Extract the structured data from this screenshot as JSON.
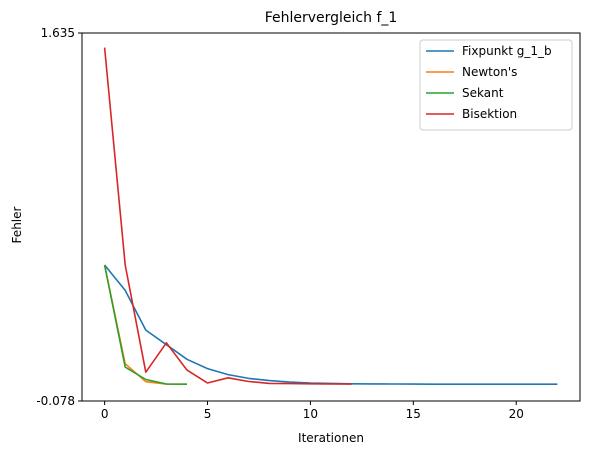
{
  "chart_data": {
    "type": "line",
    "title": "Fehlervergleich f_1",
    "xlabel": "Iterationen",
    "ylabel": "Fehler",
    "xlim": [
      -1.1,
      23.1
    ],
    "ylim": [
      -0.078,
      1.635
    ],
    "x_ticks": [
      0,
      5,
      10,
      15,
      20
    ],
    "x_tick_labels": [
      "0",
      "5",
      "10",
      "15",
      "20"
    ],
    "y_ticks": [
      1.635,
      -0.078
    ],
    "y_tick_labels": [
      "1.635",
      "-0.078"
    ],
    "grid": false,
    "legend_position": "top-right",
    "series": [
      {
        "name": "Fixpunkt g_1_b",
        "color": "#1f77b4",
        "x": [
          0,
          1,
          2,
          3,
          4,
          5,
          6,
          7,
          8,
          9,
          10,
          11,
          12,
          13,
          14,
          15,
          16,
          17,
          18,
          19,
          20,
          21,
          22
        ],
        "y": [
          0.555,
          0.437,
          0.252,
          0.184,
          0.116,
          0.073,
          0.045,
          0.027,
          0.017,
          0.01,
          0.006,
          0.004,
          0.002,
          0.0015,
          0.001,
          0.0005,
          0.0003,
          0.0002,
          0.0001,
          0.0001,
          5e-05,
          3e-05,
          2e-05
        ]
      },
      {
        "name": "Newton's",
        "color": "#ff7f0e",
        "x": [
          0,
          1,
          2,
          3,
          4
        ],
        "y": [
          0.555,
          0.095,
          0.012,
          0.0005,
          0.0
        ]
      },
      {
        "name": "Sekant",
        "color": "#2ca02c",
        "x": [
          0,
          1,
          2,
          3,
          4
        ],
        "y": [
          0.555,
          0.08,
          0.022,
          0.001,
          0.0
        ]
      },
      {
        "name": "Bisektion",
        "color": "#d62728",
        "x": [
          0,
          1,
          2,
          3,
          4,
          5,
          6,
          7,
          8,
          9,
          10,
          11,
          12
        ],
        "y": [
          1.567,
          0.555,
          0.056,
          0.193,
          0.066,
          0.006,
          0.03,
          0.013,
          0.004,
          0.003,
          0.002,
          0.001,
          0.0005
        ]
      }
    ]
  }
}
